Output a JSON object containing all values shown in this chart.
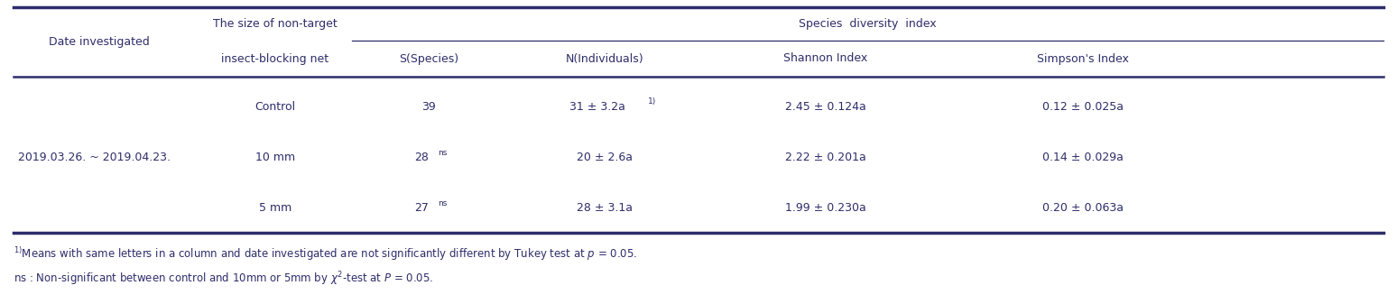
{
  "header_col1": "Date investigated",
  "header_col2_line1": "The size of non-target",
  "header_col2_line2": "insect-blocking net",
  "header_sdi": "Species  diversity  index",
  "header_species": "S(Species)",
  "header_individuals": "N(Individuals)",
  "header_shannon": "Shannon Index",
  "header_simpson": "Simpson's Index",
  "date": "2019.03.26. ~ 2019.04.23.",
  "rows": [
    {
      "net": "Control",
      "species": "39",
      "species_sup": "",
      "individuals": "31 ± 3.2a",
      "individuals_sup": "1)",
      "shannon": "2.45 ± 0.124a",
      "simpson": "0.12 ± 0.025a"
    },
    {
      "net": "10 mm",
      "species": "28",
      "species_sup": "ns",
      "individuals": "20 ± 2.6a",
      "individuals_sup": "",
      "shannon": "2.22 ± 0.201a",
      "simpson": "0.14 ± 0.029a"
    },
    {
      "net": "5 mm",
      "species": "27",
      "species_sup": "ns",
      "individuals": "28 ± 3.1a",
      "individuals_sup": "",
      "shannon": "1.99 ± 0.230a",
      "simpson": "0.20 ± 0.063a"
    }
  ],
  "footnote1": "$^{1)}$Means with same letters in a column and date investigated are not significantly different by Tukey test at $p$ = 0.05.",
  "footnote2": "ns : Non-significant between control and 10mm or 5mm by $\\chi^{2}$-test at $P$ = 0.05.",
  "text_color": "#2d2d6b",
  "line_color": "#2d2d6b",
  "bg_color": "#ffffff",
  "fontsize": 9.0
}
